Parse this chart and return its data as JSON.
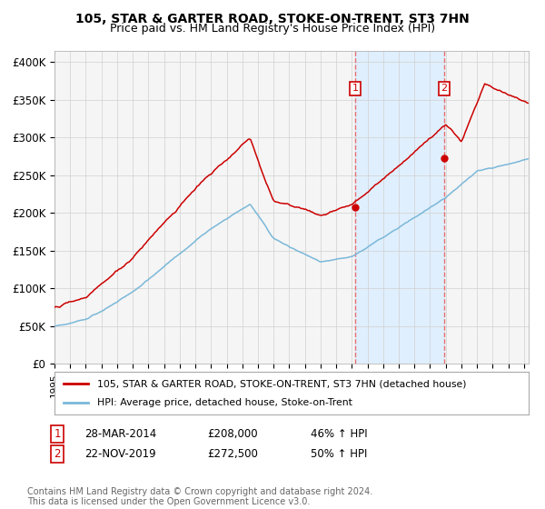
{
  "title": "105, STAR & GARTER ROAD, STOKE-ON-TRENT, ST3 7HN",
  "subtitle": "Price paid vs. HM Land Registry's House Price Index (HPI)",
  "ylabel_ticks": [
    "£0",
    "£50K",
    "£100K",
    "£150K",
    "£200K",
    "£250K",
    "£300K",
    "£350K",
    "£400K"
  ],
  "ytick_values": [
    0,
    50000,
    100000,
    150000,
    200000,
    250000,
    300000,
    350000,
    400000
  ],
  "ylim": [
    0,
    415000
  ],
  "xlim_start": 1995.0,
  "xlim_end": 2025.3,
  "hpi_color": "#7ab8d9",
  "price_color": "#cc0000",
  "marker1_date": 2014.22,
  "marker2_date": 2019.9,
  "marker1_price": 208000,
  "marker2_price": 272500,
  "vline_color": "#e87070",
  "shade_color": "#ddeeff",
  "legend_line1": "105, STAR & GARTER ROAD, STOKE-ON-TRENT, ST3 7HN (detached house)",
  "legend_line2": "HPI: Average price, detached house, Stoke-on-Trent",
  "point1_label": "1",
  "point2_label": "2",
  "point1_date": "28-MAR-2014",
  "point1_price": "£208,000",
  "point1_hpi": "46% ↑ HPI",
  "point2_date": "22-NOV-2019",
  "point2_price": "£272,500",
  "point2_hpi": "50% ↑ HPI",
  "footnote": "Contains HM Land Registry data © Crown copyright and database right 2024.\nThis data is licensed under the Open Government Licence v3.0.",
  "background_color": "#ffffff",
  "plot_bg_color": "#f5f5f5"
}
